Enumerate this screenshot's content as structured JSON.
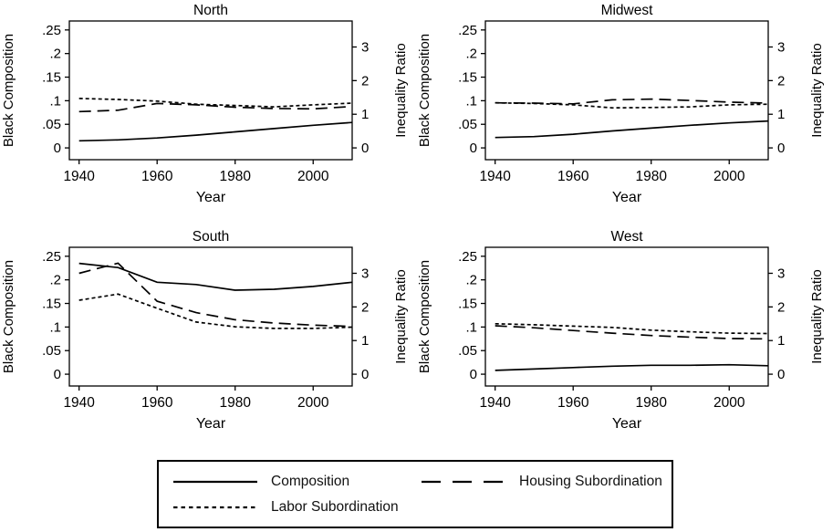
{
  "chart_data": {
    "type": "line",
    "title": "",
    "line_color": "#000000",
    "axes": {
      "xlabel": "Year",
      "left_label": "Black Composition",
      "right_label": "Inequality Ratio",
      "x_ticks": [
        1940,
        1960,
        1980,
        2000
      ],
      "x_range": [
        1937.5,
        2010
      ],
      "left_tick_labels": [
        ".25",
        ".2",
        ".15",
        ".1",
        ".05",
        "0"
      ],
      "left_tick_values": [
        0.25,
        0.2,
        0.15,
        0.1,
        0.05,
        0
      ],
      "left_range": [
        -0.025,
        0.269
      ],
      "right_tick_labels": [
        "3",
        "2",
        "1",
        "0"
      ],
      "right_tick_values": [
        3,
        2,
        1,
        0
      ],
      "right_unit_in_left": 0.0713,
      "grid": false
    },
    "panels": [
      {
        "title": "North",
        "years": [
          1940,
          1950,
          1960,
          1970,
          1980,
          1990,
          2000,
          2010
        ],
        "series": {
          "composition": [
            0.015,
            0.017,
            0.021,
            0.027,
            0.034,
            0.041,
            0.048,
            0.054
          ],
          "housing_subordination": [
            1.08,
            1.12,
            1.32,
            1.28,
            1.21,
            1.17,
            1.16,
            1.23
          ],
          "labor_subordination": [
            1.47,
            1.44,
            1.39,
            1.3,
            1.26,
            1.22,
            1.28,
            1.33
          ]
        }
      },
      {
        "title": "Midwest",
        "years": [
          1940,
          1950,
          1960,
          1970,
          1980,
          1990,
          2000,
          2010
        ],
        "series": {
          "composition": [
            0.022,
            0.024,
            0.029,
            0.036,
            0.042,
            0.048,
            0.053,
            0.057
          ],
          "housing_subordination": [
            1.34,
            1.33,
            1.31,
            1.43,
            1.45,
            1.41,
            1.36,
            1.33
          ],
          "labor_subordination": [
            1.34,
            1.32,
            1.28,
            1.19,
            1.2,
            1.22,
            1.28,
            1.3
          ]
        }
      },
      {
        "title": "South",
        "years": [
          1940,
          1950,
          1960,
          1970,
          1980,
          1990,
          2000,
          2010
        ],
        "series": {
          "composition": [
            0.235,
            0.226,
            0.195,
            0.19,
            0.178,
            0.18,
            0.186,
            0.195
          ],
          "housing_subordination": [
            3.0,
            3.3,
            2.17,
            1.83,
            1.62,
            1.52,
            1.46,
            1.42
          ],
          "labor_subordination": [
            2.2,
            2.38,
            1.96,
            1.55,
            1.41,
            1.36,
            1.36,
            1.4
          ]
        }
      },
      {
        "title": "West",
        "years": [
          1940,
          1950,
          1960,
          1970,
          1980,
          1990,
          2000,
          2010
        ],
        "series": {
          "composition": [
            0.008,
            0.011,
            0.014,
            0.017,
            0.019,
            0.019,
            0.02,
            0.018
          ],
          "housing_subordination": [
            1.44,
            1.38,
            1.3,
            1.22,
            1.15,
            1.1,
            1.06,
            1.05
          ],
          "labor_subordination": [
            1.5,
            1.47,
            1.43,
            1.39,
            1.31,
            1.26,
            1.22,
            1.21
          ]
        }
      }
    ],
    "legend": [
      {
        "label": "Composition",
        "line_style": "solid"
      },
      {
        "label": "Housing Subordination",
        "line_style": "long-dash"
      },
      {
        "label": "Labor Subordination",
        "line_style": "short-dash"
      }
    ]
  }
}
